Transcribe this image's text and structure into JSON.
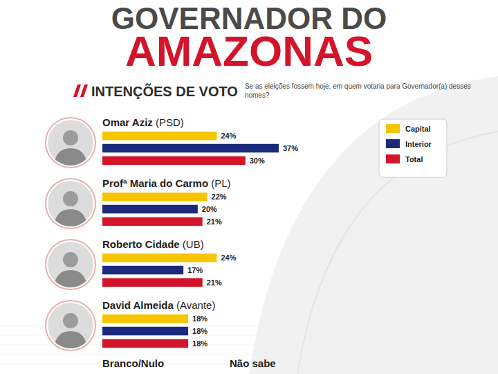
{
  "chart_data": {
    "type": "bar",
    "orientation": "horizontal",
    "title": [
      "GOVERNADOR DO",
      "AMAZONAS"
    ],
    "subtitle": "INTENÇÕES DE VOTO",
    "annotations": [
      "Se as eleições fossem hoje, em quem votaria para Governador(a) desses nomes?",
      "Branco/Nulo",
      "Não sabe"
    ],
    "categories": [
      "Omar Aziz (PSD)",
      "Profª Maria do Carmo (PL)",
      "Roberto Cidade (UB)",
      "David Almeida (Avante)"
    ],
    "series": [
      {
        "name": "Capital",
        "color": "#f7c600",
        "values": [
          24,
          22,
          24,
          18
        ],
        "value_labels": [
          "24%",
          "22%",
          "24%",
          "18%"
        ]
      },
      {
        "name": "Interior",
        "color": "#1b2a7c",
        "values": [
          37,
          20,
          17,
          18
        ],
        "value_labels": [
          "37%",
          "20%",
          "17%",
          "18%"
        ]
      },
      {
        "name": "Total",
        "color": "#d3142b",
        "values": [
          30,
          21,
          21,
          18
        ],
        "value_labels": [
          "30%",
          "21%",
          "21%",
          "18%"
        ]
      }
    ],
    "data_labels": true,
    "tick_labels": false,
    "legend": "top-right"
  }
}
